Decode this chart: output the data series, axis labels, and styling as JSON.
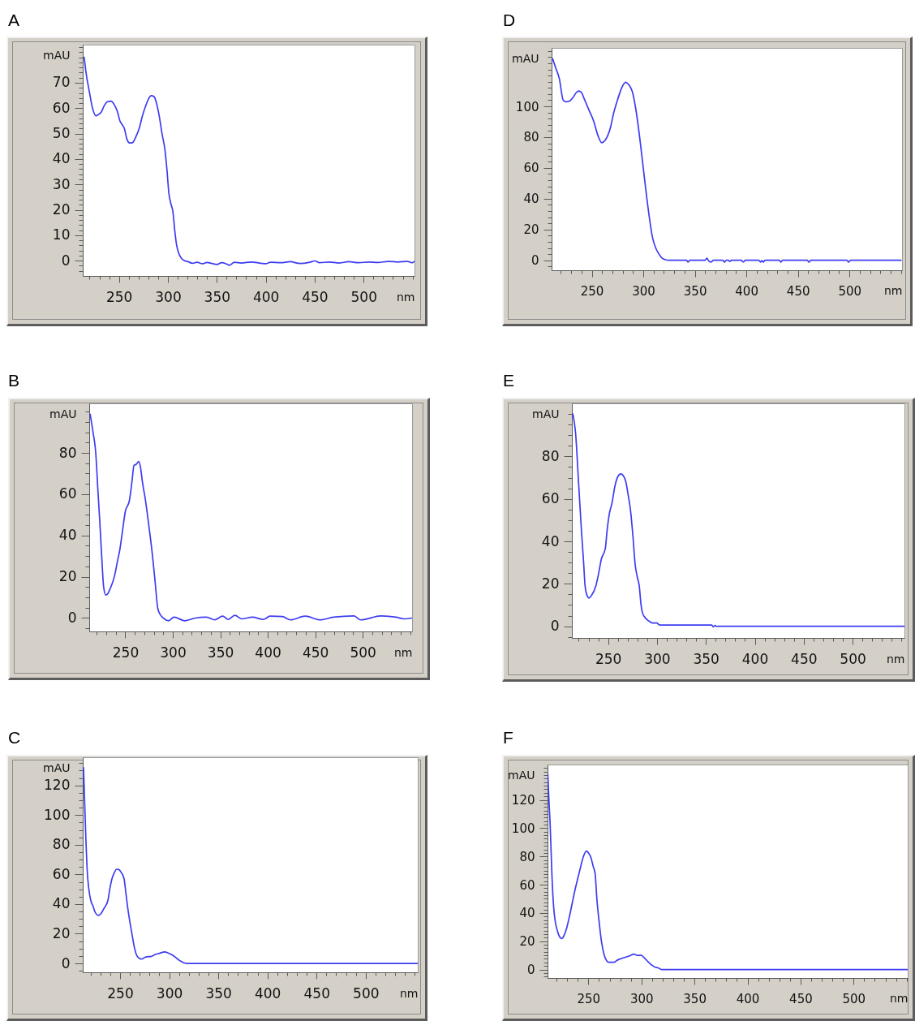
{
  "chart_data": [
    {
      "type": "line",
      "title": "A",
      "xlabel": "nm",
      "ylabel": "mAU",
      "xlim": [
        213,
        552
      ],
      "ylim": [
        -6,
        85
      ],
      "xticks": [
        {
          "value": 220,
          "label": null
        },
        {
          "value": 230,
          "label": null
        },
        {
          "value": 240,
          "label": null
        },
        250,
        {
          "value": 260,
          "label": null
        },
        {
          "value": 270,
          "label": null
        },
        {
          "value": 280,
          "label": null
        },
        {
          "value": 290,
          "label": null
        },
        300,
        {
          "value": 310,
          "label": null
        },
        {
          "value": 320,
          "label": null
        },
        {
          "value": 330,
          "label": null
        },
        {
          "value": 340,
          "label": null
        },
        350,
        {
          "value": 360,
          "label": null
        },
        {
          "value": 370,
          "label": null
        },
        {
          "value": 380,
          "label": null
        },
        {
          "value": 390,
          "label": null
        },
        400,
        {
          "value": 410,
          "label": null
        },
        {
          "value": 420,
          "label": null
        },
        {
          "value": 430,
          "label": null
        },
        {
          "value": 440,
          "label": null
        },
        450,
        {
          "value": 460,
          "label": null
        },
        {
          "value": 470,
          "label": null
        },
        {
          "value": 480,
          "label": null
        },
        {
          "value": 490,
          "label": null
        },
        500,
        {
          "value": 510,
          "label": null
        },
        {
          "value": 520,
          "label": null
        },
        {
          "value": 530,
          "label": null
        },
        {
          "value": 540,
          "label": null
        },
        {
          "value": 550,
          "label": null
        }
      ],
      "yticks": [
        {
          "value": -4,
          "label": null
        },
        {
          "value": -2,
          "label": null
        },
        0,
        {
          "value": 2,
          "label": null
        },
        {
          "value": 4,
          "label": null
        },
        {
          "value": 6,
          "label": null
        },
        {
          "value": 8,
          "label": null
        },
        10,
        {
          "value": 12,
          "label": null
        },
        {
          "value": 14,
          "label": null
        },
        {
          "value": 16,
          "label": null
        },
        {
          "value": 18,
          "label": null
        },
        20,
        {
          "value": 22,
          "label": null
        },
        {
          "value": 24,
          "label": null
        },
        {
          "value": 26,
          "label": null
        },
        {
          "value": 28,
          "label": null
        },
        30,
        {
          "value": 32,
          "label": null
        },
        {
          "value": 34,
          "label": null
        },
        {
          "value": 36,
          "label": null
        },
        {
          "value": 38,
          "label": null
        },
        40,
        {
          "value": 42,
          "label": null
        },
        {
          "value": 44,
          "label": null
        },
        {
          "value": 46,
          "label": null
        },
        {
          "value": 48,
          "label": null
        },
        50,
        {
          "value": 52,
          "label": null
        },
        {
          "value": 54,
          "label": null
        },
        {
          "value": 56,
          "label": null
        },
        {
          "value": 58,
          "label": null
        },
        60,
        {
          "value": 62,
          "label": null
        },
        {
          "value": 64,
          "label": null
        },
        {
          "value": 66,
          "label": null
        },
        {
          "value": 68,
          "label": null
        },
        70,
        {
          "value": 72,
          "label": null
        },
        {
          "value": 74,
          "label": null
        },
        {
          "value": 76,
          "label": null
        },
        {
          "value": 78,
          "label": null
        },
        {
          "value": 80,
          "label": null
        },
        {
          "value": 82,
          "label": null
        },
        {
          "value": 84,
          "label": null
        }
      ],
      "x": [
        214.5,
        216,
        220,
        223,
        226.5,
        229,
        232,
        235,
        238,
        242,
        245,
        248.6,
        251,
        253,
        255.5,
        258,
        261,
        264,
        267,
        270.7,
        274,
        277.6,
        280,
        283,
        286,
        288,
        291.4,
        294,
        297,
        299,
        301,
        303,
        305.2,
        307,
        308.8,
        311,
        313.5,
        317,
        320,
        325,
        330,
        335,
        340,
        345,
        350,
        355,
        360,
        363,
        368,
        375,
        385,
        395,
        400,
        405,
        415,
        425,
        435,
        445,
        450,
        455,
        465,
        475,
        485,
        495,
        505,
        515,
        525,
        535,
        545,
        550,
        552
      ],
      "series": [
        {
          "color": "#3c3cf2",
          "values": [
            80,
            75,
            66,
            60,
            57,
            57.5,
            58.5,
            61,
            62.5,
            62.8,
            61.5,
            58.5,
            55,
            53.7,
            52,
            48,
            46.3,
            46.5,
            48.5,
            52,
            57,
            61.2,
            63.5,
            64.9,
            64.5,
            62.5,
            56.4,
            50,
            43.6,
            36,
            26.6,
            22.5,
            19.1,
            12,
            6.4,
            3,
            1.1,
            0,
            -0.3,
            -1,
            -0.6,
            -1.2,
            -0.7,
            -1.1,
            -1.5,
            -0.8,
            -1.3,
            -1.8,
            -0.6,
            -0.9,
            -0.5,
            -1,
            -1.2,
            -0.6,
            -0.8,
            -0.4,
            -1.1,
            -0.6,
            -0.1,
            -0.8,
            -0.5,
            -0.9,
            -0.4,
            -0.8,
            -0.5,
            -0.7,
            -0.3,
            -0.5,
            -0.3,
            -0.8,
            -0.2
          ]
        }
      ]
    },
    {
      "type": "line",
      "title": "B",
      "xlabel": "nm",
      "ylabel": "mAU",
      "xlim": [
        212,
        552
      ],
      "ylim": [
        -6.5,
        104
      ],
      "xticks": [
        {
          "value": 220,
          "label": null
        },
        {
          "value": 230,
          "label": null
        },
        {
          "value": 240,
          "label": null
        },
        250,
        {
          "value": 260,
          "label": null
        },
        {
          "value": 270,
          "label": null
        },
        {
          "value": 280,
          "label": null
        },
        {
          "value": 290,
          "label": null
        },
        300,
        {
          "value": 310,
          "label": null
        },
        {
          "value": 320,
          "label": null
        },
        {
          "value": 330,
          "label": null
        },
        {
          "value": 340,
          "label": null
        },
        350,
        {
          "value": 360,
          "label": null
        },
        {
          "value": 370,
          "label": null
        },
        {
          "value": 380,
          "label": null
        },
        {
          "value": 390,
          "label": null
        },
        400,
        {
          "value": 410,
          "label": null
        },
        {
          "value": 420,
          "label": null
        },
        {
          "value": 430,
          "label": null
        },
        {
          "value": 440,
          "label": null
        },
        450,
        {
          "value": 460,
          "label": null
        },
        {
          "value": 470,
          "label": null
        },
        {
          "value": 480,
          "label": null
        },
        {
          "value": 490,
          "label": null
        },
        500,
        {
          "value": 510,
          "label": null
        },
        {
          "value": 520,
          "label": null
        },
        {
          "value": 530,
          "label": null
        },
        {
          "value": 540,
          "label": null
        },
        {
          "value": 550,
          "label": null
        }
      ],
      "yticks": [
        {
          "value": -5,
          "label": null
        },
        0,
        {
          "value": 5,
          "label": null
        },
        {
          "value": 10,
          "label": null
        },
        {
          "value": 15,
          "label": null
        },
        20,
        {
          "value": 25,
          "label": null
        },
        {
          "value": 30,
          "label": null
        },
        {
          "value": 35,
          "label": null
        },
        40,
        {
          "value": 45,
          "label": null
        },
        {
          "value": 50,
          "label": null
        },
        {
          "value": 55,
          "label": null
        },
        60,
        {
          "value": 65,
          "label": null
        },
        {
          "value": 70,
          "label": null
        },
        {
          "value": 75,
          "label": null
        },
        80,
        {
          "value": 85,
          "label": null
        },
        {
          "value": 90,
          "label": null
        },
        {
          "value": 95,
          "label": null
        },
        {
          "value": 100,
          "label": null
        }
      ],
      "x": [
        213,
        216,
        218.8,
        221,
        223,
        225,
        227.2,
        229.5,
        231,
        233,
        236,
        238.6,
        241.5,
        244.3,
        247,
        250,
        254.3,
        257,
        259.1,
        261.5,
        264.2,
        266,
        268,
        271.3,
        275,
        278.5,
        281.5,
        284.2,
        287,
        289.9,
        295.6,
        301.3,
        312.7,
        324,
        335.4,
        344,
        352.6,
        358.3,
        365.4,
        372.6,
        384,
        395.4,
        402.5,
        415.3,
        423.9,
        439.5,
        455.2,
        469.4,
        490.8,
        497.9,
        519.3,
        535,
        543.5,
        552
      ],
      "series": [
        {
          "color": "#3c3cf2",
          "values": [
            98.7,
            90,
            80.4,
            63,
            47.7,
            31,
            15,
            11.1,
            11.5,
            13.1,
            16.5,
            20.3,
            27,
            33.3,
            42,
            51.6,
            56.9,
            66,
            73.9,
            74.5,
            75.8,
            73,
            66,
            56.9,
            44,
            30.7,
            17,
            4.6,
            1.5,
            0,
            -1.3,
            0.4,
            -1.3,
            0,
            0.4,
            -0.9,
            0.9,
            -0.7,
            1.3,
            -0.4,
            0.4,
            -0.7,
            0.9,
            0.7,
            -0.9,
            0.9,
            -0.9,
            0.4,
            1,
            -0.9,
            1,
            0.4,
            -0.4,
            0
          ]
        }
      ]
    },
    {
      "type": "line",
      "title": "C",
      "xlabel": "nm",
      "ylabel": "mAU",
      "xlim": [
        212,
        553
      ],
      "ylim": [
        -6,
        139
      ],
      "xticks": [
        {
          "value": 220,
          "label": null
        },
        {
          "value": 230,
          "label": null
        },
        {
          "value": 240,
          "label": null
        },
        250,
        {
          "value": 260,
          "label": null
        },
        {
          "value": 270,
          "label": null
        },
        {
          "value": 280,
          "label": null
        },
        {
          "value": 290,
          "label": null
        },
        300,
        {
          "value": 310,
          "label": null
        },
        {
          "value": 320,
          "label": null
        },
        {
          "value": 330,
          "label": null
        },
        {
          "value": 340,
          "label": null
        },
        350,
        {
          "value": 360,
          "label": null
        },
        {
          "value": 370,
          "label": null
        },
        {
          "value": 380,
          "label": null
        },
        {
          "value": 390,
          "label": null
        },
        400,
        {
          "value": 410,
          "label": null
        },
        {
          "value": 420,
          "label": null
        },
        {
          "value": 430,
          "label": null
        },
        {
          "value": 440,
          "label": null
        },
        450,
        {
          "value": 460,
          "label": null
        },
        {
          "value": 470,
          "label": null
        },
        {
          "value": 480,
          "label": null
        },
        {
          "value": 490,
          "label": null
        },
        500,
        {
          "value": 510,
          "label": null
        },
        {
          "value": 520,
          "label": null
        },
        {
          "value": 530,
          "label": null
        },
        {
          "value": 540,
          "label": null
        },
        {
          "value": 550,
          "label": null
        }
      ],
      "yticks": [
        {
          "value": -5,
          "label": null
        },
        0,
        {
          "value": 5,
          "label": null
        },
        {
          "value": 10,
          "label": null
        },
        {
          "value": 15,
          "label": null
        },
        20,
        {
          "value": 25,
          "label": null
        },
        {
          "value": 30,
          "label": null
        },
        {
          "value": 35,
          "label": null
        },
        40,
        {
          "value": 45,
          "label": null
        },
        {
          "value": 50,
          "label": null
        },
        {
          "value": 55,
          "label": null
        },
        60,
        {
          "value": 65,
          "label": null
        },
        {
          "value": 70,
          "label": null
        },
        {
          "value": 75,
          "label": null
        },
        80,
        {
          "value": 85,
          "label": null
        },
        {
          "value": 90,
          "label": null
        },
        {
          "value": 95,
          "label": null
        },
        100,
        {
          "value": 105,
          "label": null
        },
        {
          "value": 110,
          "label": null
        },
        {
          "value": 115,
          "label": null
        },
        120,
        {
          "value": 125,
          "label": null
        },
        {
          "value": 130,
          "label": null
        },
        {
          "value": 135,
          "label": null
        }
      ],
      "x": [
        212.8,
        213.5,
        214.2,
        215.3,
        216.4,
        218.3,
        220,
        222.4,
        225,
        228,
        231,
        233.5,
        237.6,
        239.5,
        241.7,
        244,
        246.5,
        248.6,
        251,
        254.1,
        256,
        258.3,
        260.5,
        262.4,
        264.5,
        266.5,
        269,
        272,
        275,
        277.5,
        281,
        285.8,
        290,
        295.5,
        299,
        302.2,
        306,
        310.5,
        314,
        317.4,
        553
      ],
      "series": [
        {
          "color": "#3c3cf2",
          "values": [
            132,
            118,
            104,
            82,
            64,
            49.6,
            43,
            38.7,
            34,
            32.4,
            34,
            36.9,
            42.4,
            50,
            56.9,
            61,
            63.5,
            63.3,
            61.5,
            56.9,
            47,
            35.1,
            26,
            18.7,
            11,
            6,
            3.7,
            2.9,
            4,
            4.5,
            4.6,
            6,
            6.8,
            7.8,
            7,
            6,
            4.3,
            2,
            0.7,
            0,
            0
          ]
        }
      ]
    },
    {
      "type": "line",
      "title": "D",
      "xlabel": "nm",
      "ylabel": "mAU",
      "xlim": [
        211,
        551
      ],
      "ylim": [
        -6.5,
        138
      ],
      "xticks": [
        {
          "value": 220,
          "label": null
        },
        {
          "value": 230,
          "label": null
        },
        {
          "value": 240,
          "label": null
        },
        250,
        {
          "value": 260,
          "label": null
        },
        {
          "value": 270,
          "label": null
        },
        {
          "value": 280,
          "label": null
        },
        {
          "value": 290,
          "label": null
        },
        300,
        {
          "value": 310,
          "label": null
        },
        {
          "value": 320,
          "label": null
        },
        {
          "value": 330,
          "label": null
        },
        {
          "value": 340,
          "label": null
        },
        350,
        {
          "value": 360,
          "label": null
        },
        {
          "value": 370,
          "label": null
        },
        {
          "value": 380,
          "label": null
        },
        {
          "value": 390,
          "label": null
        },
        400,
        {
          "value": 410,
          "label": null
        },
        {
          "value": 420,
          "label": null
        },
        {
          "value": 430,
          "label": null
        },
        {
          "value": 440,
          "label": null
        },
        450,
        {
          "value": 460,
          "label": null
        },
        {
          "value": 470,
          "label": null
        },
        {
          "value": 480,
          "label": null
        },
        {
          "value": 490,
          "label": null
        },
        500,
        {
          "value": 510,
          "label": null
        },
        {
          "value": 520,
          "label": null
        },
        {
          "value": 530,
          "label": null
        },
        {
          "value": 540,
          "label": null
        },
        {
          "value": 550,
          "label": null
        }
      ],
      "yticks": [
        {
          "value": -4,
          "label": null
        },
        0,
        {
          "value": 4,
          "label": null
        },
        {
          "value": 8,
          "label": null
        },
        {
          "value": 12,
          "label": null
        },
        {
          "value": 16,
          "label": null
        },
        20,
        {
          "value": 24,
          "label": null
        },
        {
          "value": 28,
          "label": null
        },
        {
          "value": 32,
          "label": null
        },
        {
          "value": 36,
          "label": null
        },
        40,
        {
          "value": 44,
          "label": null
        },
        {
          "value": 48,
          "label": null
        },
        {
          "value": 52,
          "label": null
        },
        {
          "value": 56,
          "label": null
        },
        60,
        {
          "value": 64,
          "label": null
        },
        {
          "value": 68,
          "label": null
        },
        {
          "value": 72,
          "label": null
        },
        {
          "value": 76,
          "label": null
        },
        80,
        {
          "value": 84,
          "label": null
        },
        {
          "value": 88,
          "label": null
        },
        {
          "value": 92,
          "label": null
        },
        {
          "value": 96,
          "label": null
        },
        100,
        {
          "value": 104,
          "label": null
        },
        {
          "value": 108,
          "label": null
        },
        {
          "value": 112,
          "label": null
        },
        {
          "value": 116,
          "label": null
        },
        {
          "value": 120,
          "label": null
        },
        {
          "value": 124,
          "label": null
        },
        {
          "value": 128,
          "label": null
        },
        {
          "value": 132,
          "label": null
        },
        {
          "value": 136,
          "label": null
        }
      ],
      "x": [
        212,
        215,
        218.5,
        222.3,
        225,
        228.5,
        232,
        235,
        237.4,
        240,
        242.6,
        247,
        251.8,
        256,
        259.7,
        263,
        268.4,
        271,
        274.9,
        279,
        282.7,
        286,
        289.3,
        293,
        297.4,
        301,
        305.2,
        309,
        312,
        314.4,
        318,
        320.8,
        325,
        342,
        343.4,
        345,
        360,
        361.6,
        363,
        365.6,
        368,
        377,
        378.7,
        380.5,
        382.5,
        383.9,
        385.5,
        395,
        396.9,
        399,
        412,
        413.8,
        415,
        416.5,
        418,
        432,
        433.4,
        435,
        459,
        460.8,
        462.5,
        497.5,
        499.2,
        501,
        550
      ],
      "series": [
        {
          "color": "#3c3cf2",
          "values": [
            131,
            125,
            118,
            104,
            103,
            103.5,
            106,
            109,
            110,
            109,
            105,
            98,
            90.4,
            81,
            76.4,
            78,
            87,
            95,
            104,
            112,
            115.7,
            114,
            109.6,
            97,
            74.7,
            53.8,
            31,
            14.5,
            8,
            4.9,
            1.5,
            0.5,
            0,
            0,
            -1.2,
            0,
            0,
            1.4,
            0,
            -1.2,
            0,
            0,
            -1.2,
            0,
            0,
            -0.8,
            0,
            0,
            -1.2,
            0,
            0,
            -1.2,
            -0.2,
            -1.2,
            0,
            0,
            -1.2,
            0,
            0,
            -1.2,
            0,
            0,
            -1.2,
            0,
            0
          ]
        }
      ]
    },
    {
      "type": "line",
      "title": "E",
      "xlabel": "nm",
      "ylabel": "mAU",
      "xlim": [
        213,
        553
      ],
      "ylim": [
        -5.5,
        105
      ],
      "xticks": [
        {
          "value": 220,
          "label": null
        },
        {
          "value": 230,
          "label": null
        },
        {
          "value": 240,
          "label": null
        },
        250,
        {
          "value": 260,
          "label": null
        },
        {
          "value": 270,
          "label": null
        },
        {
          "value": 280,
          "label": null
        },
        {
          "value": 290,
          "label": null
        },
        300,
        {
          "value": 310,
          "label": null
        },
        {
          "value": 320,
          "label": null
        },
        {
          "value": 330,
          "label": null
        },
        {
          "value": 340,
          "label": null
        },
        350,
        {
          "value": 360,
          "label": null
        },
        {
          "value": 370,
          "label": null
        },
        {
          "value": 380,
          "label": null
        },
        {
          "value": 390,
          "label": null
        },
        400,
        {
          "value": 410,
          "label": null
        },
        {
          "value": 420,
          "label": null
        },
        {
          "value": 430,
          "label": null
        },
        {
          "value": 440,
          "label": null
        },
        450,
        {
          "value": 460,
          "label": null
        },
        {
          "value": 470,
          "label": null
        },
        {
          "value": 480,
          "label": null
        },
        {
          "value": 490,
          "label": null
        },
        500,
        {
          "value": 510,
          "label": null
        },
        {
          "value": 520,
          "label": null
        },
        {
          "value": 530,
          "label": null
        },
        {
          "value": 540,
          "label": null
        },
        {
          "value": 550,
          "label": null
        }
      ],
      "yticks": [
        {
          "value": -5,
          "label": null
        },
        0,
        {
          "value": 5,
          "label": null
        },
        {
          "value": 10,
          "label": null
        },
        {
          "value": 15,
          "label": null
        },
        20,
        {
          "value": 25,
          "label": null
        },
        {
          "value": 30,
          "label": null
        },
        {
          "value": 35,
          "label": null
        },
        40,
        {
          "value": 45,
          "label": null
        },
        {
          "value": 50,
          "label": null
        },
        {
          "value": 55,
          "label": null
        },
        60,
        {
          "value": 65,
          "label": null
        },
        {
          "value": 70,
          "label": null
        },
        {
          "value": 75,
          "label": null
        },
        80,
        {
          "value": 85,
          "label": null
        },
        {
          "value": 90,
          "label": null
        },
        {
          "value": 95,
          "label": null
        },
        {
          "value": 100,
          "label": null
        }
      ],
      "x": [
        214,
        216.8,
        219.6,
        222.9,
        225,
        226.5,
        228.5,
        230.6,
        233,
        237.5,
        240,
        243.1,
        247.2,
        249,
        251.4,
        254,
        256.9,
        260,
        263,
        265.5,
        268,
        270.5,
        273,
        275.5,
        277.7,
        280,
        281.9,
        283.5,
        285.2,
        288,
        291.6,
        295.7,
        299.9,
        302.6,
        330,
        356,
        357.5,
        359.5,
        361,
        362.4,
        553
      ],
      "series": [
        {
          "color": "#3c3cf2",
          "values": [
            100,
            91,
            69.6,
            44.3,
            30,
            19,
            14.5,
            13.3,
            14.5,
            19,
            24,
            31.6,
            36.7,
            45,
            53.2,
            58,
            65.8,
            70.5,
            71.8,
            71,
            68.4,
            62,
            54.4,
            42,
            29.1,
            23,
            19,
            11,
            6.3,
            4,
            2.5,
            1.5,
            1.5,
            0.6,
            0.6,
            0.6,
            -0.3,
            0.4,
            -0.1,
            0,
            0
          ]
        }
      ]
    },
    {
      "type": "line",
      "title": "F",
      "xlabel": "nm",
      "ylabel": "mAU",
      "xlim": [
        211.5,
        551
      ],
      "ylim": [
        -6,
        145
      ],
      "xticks": [
        {
          "value": 220,
          "label": null
        },
        {
          "value": 230,
          "label": null
        },
        {
          "value": 240,
          "label": null
        },
        250,
        {
          "value": 260,
          "label": null
        },
        {
          "value": 270,
          "label": null
        },
        {
          "value": 280,
          "label": null
        },
        {
          "value": 290,
          "label": null
        },
        300,
        {
          "value": 310,
          "label": null
        },
        {
          "value": 320,
          "label": null
        },
        {
          "value": 330,
          "label": null
        },
        {
          "value": 340,
          "label": null
        },
        350,
        {
          "value": 360,
          "label": null
        },
        {
          "value": 370,
          "label": null
        },
        {
          "value": 380,
          "label": null
        },
        {
          "value": 390,
          "label": null
        },
        400,
        {
          "value": 410,
          "label": null
        },
        {
          "value": 420,
          "label": null
        },
        {
          "value": 430,
          "label": null
        },
        {
          "value": 440,
          "label": null
        },
        450,
        {
          "value": 460,
          "label": null
        },
        {
          "value": 470,
          "label": null
        },
        {
          "value": 480,
          "label": null
        },
        {
          "value": 490,
          "label": null
        },
        500,
        {
          "value": 510,
          "label": null
        },
        {
          "value": 520,
          "label": null
        },
        {
          "value": 530,
          "label": null
        },
        {
          "value": 540,
          "label": null
        },
        {
          "value": 550,
          "label": null
        }
      ],
      "yticks": [
        {
          "value": -5,
          "label": null
        },
        {
          "value": -2.5,
          "label": null
        },
        0,
        {
          "value": 2.5,
          "label": null
        },
        {
          "value": 5,
          "label": null
        },
        {
          "value": 7.5,
          "label": null
        },
        {
          "value": 10,
          "label": null
        },
        {
          "value": 12.5,
          "label": null
        },
        {
          "value": 15,
          "label": null
        },
        {
          "value": 17.5,
          "label": null
        },
        20,
        {
          "value": 22.5,
          "label": null
        },
        {
          "value": 25,
          "label": null
        },
        {
          "value": 27.5,
          "label": null
        },
        {
          "value": 30,
          "label": null
        },
        {
          "value": 32.5,
          "label": null
        },
        {
          "value": 35,
          "label": null
        },
        {
          "value": 37.5,
          "label": null
        },
        40,
        {
          "value": 42.5,
          "label": null
        },
        {
          "value": 45,
          "label": null
        },
        {
          "value": 47.5,
          "label": null
        },
        {
          "value": 50,
          "label": null
        },
        {
          "value": 52.5,
          "label": null
        },
        {
          "value": 55,
          "label": null
        },
        {
          "value": 57.5,
          "label": null
        },
        60,
        {
          "value": 62.5,
          "label": null
        },
        {
          "value": 65,
          "label": null
        },
        {
          "value": 67.5,
          "label": null
        },
        {
          "value": 70,
          "label": null
        },
        {
          "value": 72.5,
          "label": null
        },
        {
          "value": 75,
          "label": null
        },
        {
          "value": 77.5,
          "label": null
        },
        80,
        {
          "value": 82.5,
          "label": null
        },
        {
          "value": 85,
          "label": null
        },
        {
          "value": 87.5,
          "label": null
        },
        {
          "value": 90,
          "label": null
        },
        {
          "value": 92.5,
          "label": null
        },
        {
          "value": 95,
          "label": null
        },
        {
          "value": 97.5,
          "label": null
        },
        100,
        {
          "value": 102.5,
          "label": null
        },
        {
          "value": 105,
          "label": null
        },
        {
          "value": 107.5,
          "label": null
        },
        {
          "value": 110,
          "label": null
        },
        {
          "value": 112.5,
          "label": null
        },
        {
          "value": 115,
          "label": null
        },
        {
          "value": 117.5,
          "label": null
        },
        120,
        {
          "value": 122.5,
          "label": null
        },
        {
          "value": 125,
          "label": null
        },
        {
          "value": 127.5,
          "label": null
        },
        {
          "value": 130,
          "label": null
        },
        {
          "value": 132.5,
          "label": null
        },
        {
          "value": 135,
          "label": null
        },
        {
          "value": 137.5,
          "label": null
        },
        {
          "value": 140,
          "label": null
        },
        {
          "value": 142.5,
          "label": null
        }
      ],
      "x": [
        211.8,
        212.8,
        213.9,
        215.7,
        217.4,
        219,
        220.7,
        223,
        225,
        227,
        229.6,
        232,
        234.7,
        237,
        239.8,
        242.5,
        244.9,
        248.2,
        250.5,
        252.5,
        254.5,
        256.4,
        258,
        260.2,
        262.5,
        264.8,
        267,
        269.1,
        274.2,
        277,
        280.5,
        284,
        288.2,
        293.2,
        296,
        299.6,
        303,
        306,
        309,
        312.3,
        316.2,
        318.8,
        551
      ],
      "series": [
        {
          "color": "#3c3cf2",
          "values": [
            138,
            120,
            103.8,
            65.7,
            42.9,
            33,
            27.6,
            23,
            21.9,
            24,
            29.5,
            37,
            46.7,
            55,
            63.8,
            72,
            79,
            83.8,
            82,
            79,
            73,
            67.6,
            50,
            33.3,
            19,
            10.5,
            6.5,
            5.1,
            5.1,
            6.5,
            7.6,
            8.5,
            9.5,
            10.9,
            10,
            10.1,
            8,
            5.7,
            3.5,
            1.9,
            1,
            0,
            0
          ]
        }
      ]
    }
  ]
}
